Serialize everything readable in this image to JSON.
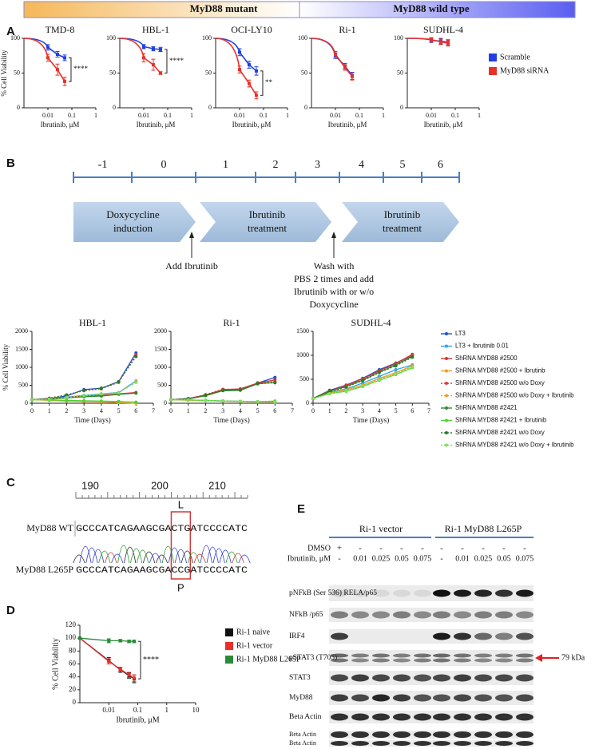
{
  "header": {
    "mutant": "MyD88 mutant",
    "wild_type": "MyD88 wild type"
  },
  "panel_labels": [
    "A",
    "B",
    "C",
    "D",
    "E"
  ],
  "chart_data": [
    {
      "type": "line",
      "title": "TMD-8",
      "title_color": "#e0262a",
      "ylabel": "% Cell Viability",
      "xlabel": "Ibrutinib, μM",
      "log_x": true,
      "xlim": [
        0.001,
        1
      ],
      "xticks": [
        0.01,
        0.1,
        1
      ],
      "ylim": [
        0,
        100
      ],
      "yticks": [
        0,
        50,
        100
      ],
      "x": [
        0.01,
        0.025,
        0.05
      ],
      "series": [
        {
          "name": "Scramble",
          "color": "#1f3fe0",
          "values": [
            87,
            77,
            72
          ],
          "errors": [
            4,
            4,
            4
          ]
        },
        {
          "name": "MyD88 siRNA",
          "color": "#e8302a",
          "values": [
            72,
            55,
            38
          ],
          "errors": [
            5,
            8,
            6
          ]
        }
      ],
      "annotation": "****"
    },
    {
      "type": "line",
      "title": "HBL-1",
      "title_color": "#e0262a",
      "xlabel": "Ibrutinib, μM",
      "log_x": true,
      "xlim": [
        0.001,
        1
      ],
      "xticks": [
        0.01,
        0.1,
        1
      ],
      "ylim": [
        0,
        100
      ],
      "yticks": [
        0,
        50,
        100
      ],
      "x": [
        0.01,
        0.025,
        0.05
      ],
      "series": [
        {
          "color": "#1f3fe0",
          "values": [
            88,
            85,
            84
          ],
          "errors": [
            3,
            3,
            3
          ]
        },
        {
          "color": "#e8302a",
          "values": [
            72,
            62,
            50
          ],
          "errors": [
            6,
            8,
            2
          ]
        }
      ],
      "annotation": "****"
    },
    {
      "type": "line",
      "title": "OCI-LY10",
      "title_color": "#e0262a",
      "xlabel": "Ibrutinib, μM",
      "log_x": true,
      "xlim": [
        0.001,
        1
      ],
      "xticks": [
        0.01,
        0.1,
        1
      ],
      "ylim": [
        0,
        100
      ],
      "yticks": [
        0,
        50,
        100
      ],
      "x": [
        0.01,
        0.025,
        0.05
      ],
      "series": [
        {
          "color": "#1f3fe0",
          "values": [
            80,
            62,
            53
          ],
          "errors": [
            5,
            5,
            6
          ]
        },
        {
          "color": "#e8302a",
          "values": [
            55,
            35,
            18
          ],
          "errors": [
            5,
            5,
            5
          ]
        }
      ],
      "annotation": "**"
    },
    {
      "type": "line",
      "title": "Ri-1",
      "title_color": "#e0262a",
      "xlabel": "Ibrutinib, μM",
      "log_x": true,
      "xlim": [
        0.001,
        1
      ],
      "xticks": [
        0.01,
        0.1,
        1
      ],
      "ylim": [
        0,
        100
      ],
      "yticks": [
        0,
        50,
        100
      ],
      "x": [
        0.01,
        0.025,
        0.05
      ],
      "series": [
        {
          "color": "#1f3fe0",
          "values": [
            75,
            60,
            46
          ],
          "errors": [
            4,
            4,
            5
          ]
        },
        {
          "color": "#e8302a",
          "values": [
            77,
            58,
            45
          ],
          "errors": [
            4,
            4,
            5
          ]
        }
      ]
    },
    {
      "type": "line",
      "title": "SUDHL-4",
      "title_color": "#2a2ad0",
      "xlabel": "Ibrutinib, μM",
      "log_x": true,
      "xlim": [
        0.001,
        1
      ],
      "xticks": [
        0.01,
        0.1,
        1
      ],
      "ylim": [
        0,
        100
      ],
      "yticks": [
        0,
        50,
        100
      ],
      "x": [
        0.01,
        0.025,
        0.05
      ],
      "series": [
        {
          "color": "#1f3fe0",
          "values": [
            97,
            96,
            94
          ],
          "errors": [
            3,
            4,
            4
          ]
        },
        {
          "color": "#e8302a",
          "values": [
            98,
            95,
            93
          ],
          "errors": [
            3,
            4,
            4
          ]
        }
      ]
    },
    {
      "type": "line",
      "title": "HBL-1",
      "title_color": "#e0262a",
      "ylabel": "% Cell Viability",
      "xlabel": "Time (Days)",
      "xlim": [
        0,
        7
      ],
      "xticks": [
        0,
        1,
        2,
        3,
        4,
        5,
        6,
        7
      ],
      "ylim": [
        0,
        2000
      ],
      "yticks": [
        0,
        500,
        1000,
        1500,
        2000
      ],
      "x": [
        0,
        1,
        2,
        3,
        4,
        5,
        6
      ],
      "series": [
        {
          "name": "LT3",
          "color": "#1d4fd8",
          "dashed": false,
          "values": [
            100,
            130,
            200,
            380,
            420,
            600,
            1400
          ]
        },
        {
          "name": "LT3 + Ibrutinib 0.01",
          "color": "#2fa3e6",
          "dashed": false,
          "values": [
            100,
            120,
            170,
            220,
            260,
            300,
            620
          ]
        },
        {
          "name": "ShRNA MYD88 #2500",
          "color": "#e0302a",
          "dashed": false,
          "values": [
            100,
            120,
            160,
            200,
            220,
            260,
            300
          ]
        },
        {
          "name": "ShRNA MYD88 #2500 + Ibrutinb",
          "color": "#f39a1e",
          "dashed": false,
          "values": [
            100,
            80,
            60,
            50,
            40,
            20,
            0
          ]
        },
        {
          "name": "ShRNA MYD88 #2500 w/o Doxy",
          "color": "#d8403a",
          "dashed": true,
          "values": [
            100,
            140,
            230,
            350,
            400,
            580,
            1350
          ]
        },
        {
          "name": "ShRNA MYD88 #2500 w/o Doxy + Ibrutinib",
          "color": "#f0a030",
          "dashed": true,
          "values": [
            100,
            110,
            150,
            200,
            250,
            300,
            600
          ]
        },
        {
          "name": "ShRNA MYD88 #2421",
          "color": "#2e8b2e",
          "dashed": false,
          "values": [
            100,
            110,
            150,
            180,
            200,
            250,
            280
          ]
        },
        {
          "name": "ShRNA MYD88 #2421 + Ibrutinib",
          "color": "#4cd430",
          "dashed": false,
          "values": [
            100,
            90,
            80,
            70,
            60,
            50,
            30
          ]
        },
        {
          "name": "ShRNA MYD88 #2421 w/o Doxy",
          "color": "#2a7a2a",
          "dashed": true,
          "values": [
            100,
            140,
            230,
            360,
            420,
            600,
            1300
          ]
        },
        {
          "name": "ShRNA MYD88 #2421 w/o Doxy + Ibrutinib",
          "color": "#7ee05a",
          "dashed": true,
          "values": [
            100,
            115,
            160,
            210,
            260,
            290,
            580
          ]
        }
      ]
    },
    {
      "type": "line",
      "title": "Ri-1",
      "title_color": "#e0262a",
      "xlabel": "Time (Days)",
      "xlim": [
        0,
        7
      ],
      "xticks": [
        0,
        1,
        2,
        3,
        4,
        5,
        6,
        7
      ],
      "ylim": [
        0,
        2000
      ],
      "yticks": [
        0,
        500,
        1000,
        1500,
        2000
      ],
      "x": [
        0,
        1,
        2,
        3,
        4,
        5,
        6
      ],
      "series": [
        {
          "color": "#1d4fd8",
          "dashed": false,
          "values": [
            100,
            130,
            220,
            360,
            380,
            560,
            720
          ]
        },
        {
          "color": "#2fa3e6",
          "dashed": false,
          "values": [
            100,
            90,
            80,
            65,
            55,
            45,
            40
          ]
        },
        {
          "color": "#e0302a",
          "dashed": false,
          "values": [
            100,
            125,
            230,
            380,
            400,
            560,
            650
          ]
        },
        {
          "color": "#f39a1e",
          "dashed": false,
          "values": [
            100,
            85,
            75,
            60,
            50,
            40,
            30
          ]
        },
        {
          "color": "#d8403a",
          "dashed": true,
          "values": [
            100,
            130,
            240,
            390,
            380,
            570,
            600
          ]
        },
        {
          "color": "#f0a030",
          "dashed": true,
          "values": [
            100,
            90,
            80,
            60,
            50,
            40,
            35
          ]
        },
        {
          "color": "#2e8b2e",
          "dashed": false,
          "values": [
            100,
            120,
            210,
            350,
            360,
            540,
            580
          ]
        },
        {
          "color": "#4cd430",
          "dashed": false,
          "values": [
            100,
            90,
            80,
            60,
            55,
            45,
            60
          ]
        },
        {
          "color": "#2a7a2a",
          "dashed": true,
          "values": [
            100,
            125,
            220,
            360,
            370,
            550,
            570
          ]
        },
        {
          "color": "#7ee05a",
          "dashed": true,
          "values": [
            100,
            95,
            85,
            65,
            55,
            45,
            40
          ]
        }
      ]
    },
    {
      "type": "line",
      "title": "SUDHL-4",
      "title_color": "#2a2ad0",
      "xlabel": "Time (Days)",
      "xlim": [
        0,
        7
      ],
      "xticks": [
        0,
        1,
        2,
        3,
        4,
        5,
        6,
        7
      ],
      "ylim": [
        0,
        1500
      ],
      "yticks": [
        0,
        500,
        1000,
        1500
      ],
      "x": [
        0,
        1,
        2,
        3,
        4,
        5,
        6
      ],
      "series": [
        {
          "color": "#1d4fd8",
          "dashed": false,
          "values": [
            100,
            270,
            380,
            520,
            700,
            840,
            1000
          ]
        },
        {
          "color": "#2fa3e6",
          "dashed": false,
          "values": [
            100,
            230,
            300,
            420,
            560,
            700,
            800
          ]
        },
        {
          "color": "#e0302a",
          "dashed": false,
          "values": [
            100,
            260,
            370,
            510,
            680,
            830,
            1020
          ]
        },
        {
          "color": "#f39a1e",
          "dashed": false,
          "values": [
            100,
            220,
            280,
            380,
            520,
            640,
            780
          ]
        },
        {
          "color": "#d8403a",
          "dashed": true,
          "values": [
            100,
            250,
            360,
            500,
            660,
            820,
            1000
          ]
        },
        {
          "color": "#f0a030",
          "dashed": true,
          "values": [
            100,
            210,
            260,
            360,
            500,
            620,
            760
          ]
        },
        {
          "color": "#2e8b2e",
          "dashed": false,
          "values": [
            100,
            250,
            350,
            480,
            650,
            800,
            980
          ]
        },
        {
          "color": "#4cd430",
          "dashed": false,
          "values": [
            100,
            200,
            250,
            350,
            480,
            600,
            740
          ]
        },
        {
          "color": "#2a7a2a",
          "dashed": true,
          "values": [
            100,
            240,
            340,
            470,
            640,
            780,
            960
          ]
        },
        {
          "color": "#7ee05a",
          "dashed": true,
          "values": [
            100,
            200,
            260,
            360,
            490,
            610,
            750
          ]
        }
      ]
    },
    {
      "type": "line",
      "ylabel": "% Cell Viabiltiy",
      "xlabel": "Ibrutinib, μM",
      "log_x": true,
      "xlim": [
        0.001,
        10
      ],
      "xticks": [
        0.01,
        0.1,
        1,
        10
      ],
      "ylim": [
        0,
        120
      ],
      "yticks": [
        0,
        20,
        40,
        60,
        80,
        100,
        120
      ],
      "x": [
        0.001,
        0.01,
        0.025,
        0.05,
        0.075
      ],
      "series": [
        {
          "name": "Ri-1 naive",
          "color": "#111111",
          "values": [
            100,
            65,
            51,
            42,
            37
          ],
          "errors": [
            0,
            5,
            4,
            4,
            6
          ]
        },
        {
          "name": "Ri-1 vector",
          "color": "#e8302a",
          "values": [
            100,
            64,
            52,
            43,
            38
          ],
          "errors": [
            0,
            4,
            3,
            4,
            5
          ]
        },
        {
          "name": "Ri-1 MyD88 L265P",
          "color": "#2a8a3a",
          "values": [
            100,
            96,
            96,
            95,
            95
          ],
          "errors": [
            0,
            3,
            2,
            2,
            2
          ]
        }
      ],
      "annotation": "****"
    }
  ],
  "timeline": {
    "days": [
      "-1",
      "0",
      "1",
      "2",
      "3",
      "4",
      "5",
      "6"
    ],
    "phases": [
      [
        "Doxycycline",
        "induction"
      ],
      [
        "Ibrutinib",
        "treatment"
      ],
      [
        "Ibrutinib",
        "treatment"
      ]
    ],
    "notes": [
      [
        "Add Ibrutinib"
      ],
      [
        "Wash with",
        "PBS 2 times and add",
        "Ibrutinib with or w/o",
        "Doxycycline"
      ]
    ]
  },
  "sequencing": {
    "positions": [
      "190",
      "200",
      "210"
    ],
    "wt_residue": "L",
    "mut_residue": "P",
    "wt_label": "MyD88 WT",
    "mut_label": "MyD88 L265P",
    "wt_sequence": "GCCCATCAGAAGCGACTGATCCCCATC",
    "mut_sequence": "GCCCATCAGAAGCGACCGATCCCCATC"
  },
  "blot": {
    "groups": [
      "Ri-1 vector",
      "Ri-1 MyD88 L265P"
    ],
    "treatment_labels": [
      "DMSO",
      "Ibrutinib, μM"
    ],
    "dmso": [
      "+",
      "-",
      "-",
      "-",
      "-",
      "-",
      "-",
      "-",
      "-",
      "-"
    ],
    "ibrutinib": [
      "-",
      "0.01",
      "0.025",
      "0.05",
      "0.075",
      "-",
      "0.01",
      "0.025",
      "0.05",
      "0.075"
    ],
    "rows": [
      "pNFkB (Ser 536) RELA/p65",
      "NFkB /p65",
      "IRF4",
      "pSTAT3 (T705)",
      "STAT3",
      "MyD88",
      "Beta Actin",
      "Beta Actin",
      "Beta Actin"
    ],
    "marker": "79 kDa"
  }
}
